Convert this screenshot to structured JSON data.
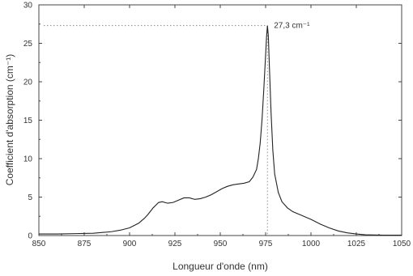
{
  "chart_data": {
    "type": "line",
    "xlabel": "Longueur d'onde (nm)",
    "ylabel": "Coefficient d'absorption (cm⁻¹)",
    "xlim": [
      850,
      1050
    ],
    "ylim": [
      0,
      30
    ],
    "x_ticks": [
      "850",
      "875",
      "900",
      "925",
      "950",
      "975",
      "1000",
      "1025",
      "1050"
    ],
    "y_ticks": [
      "0",
      "5",
      "10",
      "15",
      "20",
      "25",
      "30"
    ],
    "grid": false,
    "annotation": {
      "text": "27,3 cm⁻¹",
      "x": 976,
      "y": 27.3
    },
    "series": [
      {
        "x": [
          850,
          860,
          870,
          880,
          890,
          895,
          900,
          905,
          908,
          910,
          913,
          916,
          918,
          921,
          924,
          927,
          930,
          933,
          936,
          939,
          942,
          945,
          948,
          951,
          954,
          957,
          960,
          963,
          966,
          968,
          970,
          971,
          972,
          973,
          974,
          975,
          975.5,
          976,
          976.5,
          977,
          978,
          979,
          980,
          982,
          984,
          987,
          990,
          995,
          1000,
          1005,
          1010,
          1015,
          1020,
          1025,
          1030,
          1040,
          1050
        ],
        "y": [
          0.2,
          0.2,
          0.25,
          0.3,
          0.5,
          0.7,
          1.0,
          1.6,
          2.2,
          2.7,
          3.6,
          4.3,
          4.4,
          4.2,
          4.3,
          4.6,
          4.9,
          4.9,
          4.7,
          4.8,
          5.0,
          5.3,
          5.7,
          6.1,
          6.4,
          6.6,
          6.7,
          6.8,
          7.0,
          7.6,
          8.6,
          10.0,
          12.0,
          15.0,
          19.0,
          23.5,
          25.8,
          27.3,
          26.0,
          22.5,
          16.0,
          11.0,
          8.0,
          5.6,
          4.4,
          3.6,
          3.1,
          2.6,
          2.1,
          1.5,
          1.0,
          0.6,
          0.35,
          0.2,
          0.1,
          0.05,
          0.05
        ]
      }
    ]
  }
}
